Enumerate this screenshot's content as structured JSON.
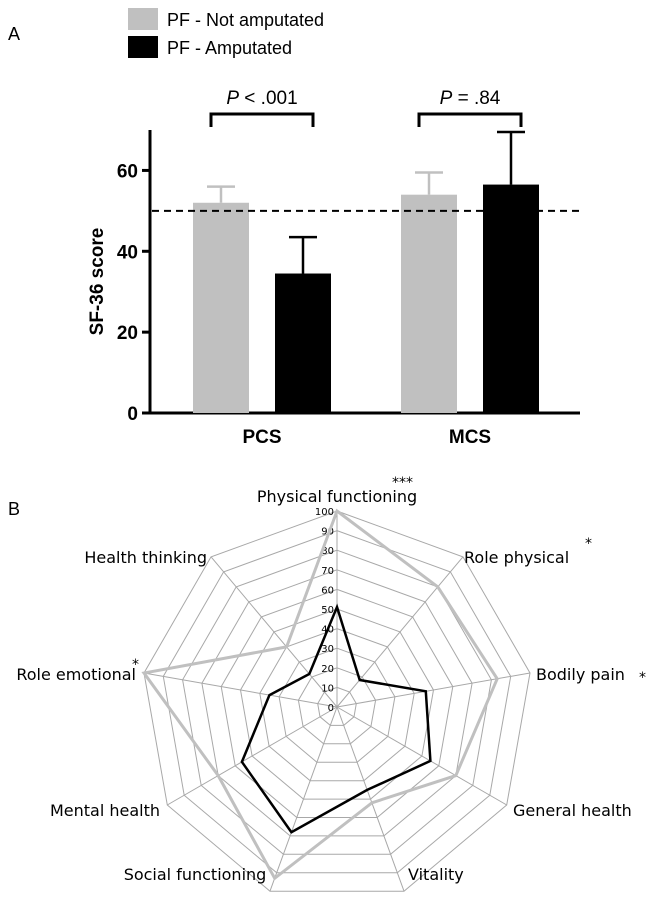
{
  "panel_a": {
    "label": "A",
    "legend": [
      {
        "name": "PF - Not amputated",
        "color": "#c0c0c0"
      },
      {
        "name": "PF - Amputated",
        "color": "#000000"
      }
    ]
  },
  "panel_b": {
    "label": "B"
  },
  "chart_data": [
    {
      "type": "bar",
      "ylabel": "SF-36 score",
      "ylim": [
        0,
        70
      ],
      "yticks": [
        "0",
        "20",
        "40",
        "60"
      ],
      "categories": [
        "PCS",
        "MCS"
      ],
      "reference_line": 50,
      "series": [
        {
          "name": "PF - Not amputated",
          "color": "#c0c0c0",
          "values": [
            52,
            54
          ],
          "error": [
            4,
            5.5
          ]
        },
        {
          "name": "PF - Amputated",
          "color": "#000000",
          "values": [
            34.5,
            56.5
          ],
          "error": [
            9,
            13
          ]
        }
      ],
      "annotations": [
        {
          "category": "PCS",
          "p_symbol": "P",
          "p_rest": " < .001"
        },
        {
          "category": "MCS",
          "p_symbol": "P",
          "p_rest": " = .84"
        }
      ]
    },
    {
      "type": "radar",
      "axes": [
        {
          "label": "Physical functioning",
          "mark": "***"
        },
        {
          "label": "Role physical",
          "mark": "*"
        },
        {
          "label": "Bodily pain",
          "mark": "*"
        },
        {
          "label": "General health",
          "mark": ""
        },
        {
          "label": "Vitality",
          "mark": ""
        },
        {
          "label": "Social functioning",
          "mark": ""
        },
        {
          "label": "Mental health",
          "mark": ""
        },
        {
          "label": "Role emotional",
          "mark": "*"
        },
        {
          "label": "Health thinking",
          "mark": ""
        }
      ],
      "rlim": [
        0,
        100
      ],
      "ticks": [
        "0",
        "10",
        "20",
        "30",
        "40",
        "50",
        "60",
        "70",
        "80",
        "90",
        "100"
      ],
      "series": [
        {
          "name": "PF - Not amputated",
          "color": "#c0c0c0",
          "values": [
            100,
            80,
            83,
            70,
            52,
            93,
            70,
            100,
            40
          ]
        },
        {
          "name": "PF - Amputated",
          "color": "#000000",
          "values": [
            51,
            18,
            46,
            55,
            45,
            68,
            56,
            35,
            22
          ]
        }
      ]
    }
  ]
}
